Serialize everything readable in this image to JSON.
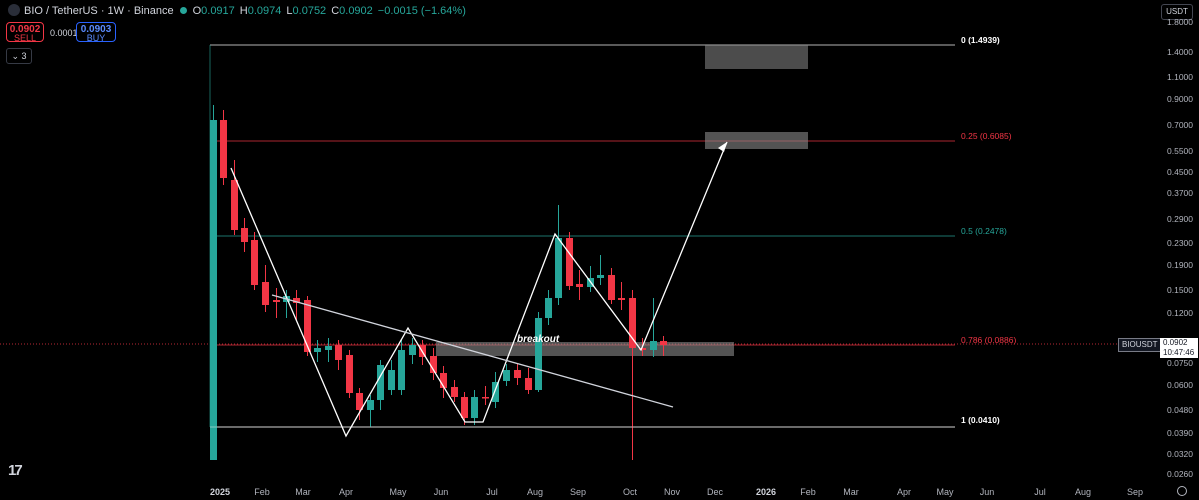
{
  "header": {
    "symbol": "BIO / TetherUS · 1W · Binance",
    "open_label": "O",
    "open": "0.0917",
    "high_label": "H",
    "high": "0.0974",
    "low_label": "L",
    "low": "0.0752",
    "close_label": "C",
    "close": "0.0902",
    "change": "−0.0015 (−1.64%)"
  },
  "trade": {
    "sell_price": "0.0902",
    "sell_label": "SELL",
    "spread": "0.0001",
    "buy_price": "0.0903",
    "buy_label": "BUY"
  },
  "collapse_label": "3",
  "currency_label": "USDT",
  "price_axis": [
    "1.8000",
    "1.4000",
    "1.1000",
    "0.9000",
    "0.7000",
    "0.5500",
    "0.4500",
    "0.3700",
    "0.2900",
    "0.2300",
    "0.1900",
    "0.1500",
    "0.1200",
    "0.0750",
    "0.0600",
    "0.0480",
    "0.0390",
    "0.0320",
    "0.0260"
  ],
  "time_axis": [
    {
      "label": "2025",
      "bold": true
    },
    {
      "label": "Feb"
    },
    {
      "label": "Mar"
    },
    {
      "label": "Apr"
    },
    {
      "label": "May"
    },
    {
      "label": "Jun"
    },
    {
      "label": "Jul"
    },
    {
      "label": "Aug"
    },
    {
      "label": "Sep"
    },
    {
      "label": "Oct"
    },
    {
      "label": "Nov"
    },
    {
      "label": "Dec"
    },
    {
      "label": "2026",
      "bold": true
    },
    {
      "label": "Feb"
    },
    {
      "label": "Mar"
    },
    {
      "label": "Apr"
    },
    {
      "label": "May"
    },
    {
      "label": "Jun"
    },
    {
      "label": "Jul"
    },
    {
      "label": "Aug"
    },
    {
      "label": "Sep"
    }
  ],
  "fib_levels": [
    {
      "label": "0 (1.4939)",
      "color": "#ffffff",
      "bold": true
    },
    {
      "label": "0.25 (0.6085)",
      "color": "#f23645"
    },
    {
      "label": "0.5 (0.2478)",
      "color": "#26a69a"
    },
    {
      "label": "0.786 (0.0886)",
      "color": "#f23645"
    },
    {
      "label": "1 (0.0410)",
      "color": "#ffffff",
      "bold": true
    }
  ],
  "price_tag": {
    "symbol": "BIOUSDT",
    "price": "0.0902",
    "countdown": "10:47:46"
  },
  "annotation": "breakout",
  "colors": {
    "up": "#26a69a",
    "down": "#f23645",
    "background": "#000000"
  }
}
